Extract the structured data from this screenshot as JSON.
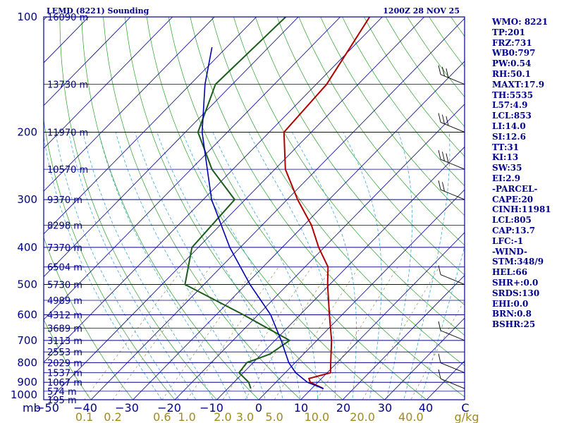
{
  "title": {
    "station": "LEMD (8221) Sounding",
    "time": "1200Z 28 NOV 25"
  },
  "colors": {
    "frame": "#00008b",
    "temperature": "#b00000",
    "dewpoint": "#1a5c1a",
    "parcel": "#0000b0",
    "dry_adiabat": "#2aa02a",
    "moist_adiabat": "#3aaad8",
    "mixing_ratio": "#9a8a5a",
    "mixing_label": "#a08a20"
  },
  "chart_data": {
    "type": "line",
    "subtype": "skew-t log-p sounding",
    "x_unit": "C",
    "x_range": [
      -50,
      50
    ],
    "y_unit": "mb",
    "y_range": [
      100,
      1000
    ],
    "pressure_ticks": [
      100,
      200,
      300,
      400,
      500,
      600,
      700,
      800,
      900,
      1000
    ],
    "y_axis_label": "mb",
    "temperature_ticks": [
      -40,
      -30,
      -20,
      -10,
      0,
      10,
      20,
      30,
      40
    ],
    "temperature_tick_labels": [
      "−50",
      "−40",
      "−30",
      "−20",
      "−10",
      "0",
      "10",
      "20",
      "30",
      "40",
      "C"
    ],
    "height_levels": [
      {
        "p": 100,
        "label": "16090 m"
      },
      {
        "p": 150,
        "label": "13730 m"
      },
      {
        "p": 200,
        "label": "11970 m"
      },
      {
        "p": 250,
        "label": "10570 m"
      },
      {
        "p": 300,
        "label": "9370 m"
      },
      {
        "p": 350,
        "label": "8298 m"
      },
      {
        "p": 400,
        "label": "7370 m"
      },
      {
        "p": 450,
        "label": "6504 m"
      },
      {
        "p": 500,
        "label": "5730 m"
      },
      {
        "p": 550,
        "label": "4989 m"
      },
      {
        "p": 600,
        "label": "4312 m"
      },
      {
        "p": 650,
        "label": "3689 m"
      },
      {
        "p": 700,
        "label": "3113 m"
      },
      {
        "p": 750,
        "label": "2553 m"
      },
      {
        "p": 800,
        "label": "2029 m"
      },
      {
        "p": 850,
        "label": "1537 m"
      },
      {
        "p": 900,
        "label": "1067 m"
      },
      {
        "p": 950,
        "label": "574 m"
      },
      {
        "p": 1000,
        "label": "195 m"
      }
    ],
    "mixing_ratio_labels": [
      "0.1",
      "0.2",
      "0.6",
      "1.0",
      "2.0",
      "3.0",
      "5.0",
      "10.0",
      "20.0",
      "40.0",
      "g/kg"
    ],
    "mixing_ratio_values": [
      0.1,
      0.2,
      0.6,
      1.0,
      2.0,
      3.0,
      5.0,
      10.0,
      20.0,
      40.0
    ],
    "series": [
      {
        "name": "Temperature",
        "points": [
          {
            "p": 100,
            "t": -63.0
          },
          {
            "p": 150,
            "t": -57.5
          },
          {
            "p": 200,
            "t": -56.5
          },
          {
            "p": 250,
            "t": -47.5
          },
          {
            "p": 300,
            "t": -37.5
          },
          {
            "p": 350,
            "t": -28.2
          },
          {
            "p": 400,
            "t": -21.3
          },
          {
            "p": 450,
            "t": -14.5
          },
          {
            "p": 500,
            "t": -10.5
          },
          {
            "p": 600,
            "t": -3.0
          },
          {
            "p": 700,
            "t": 3.5
          },
          {
            "p": 800,
            "t": 8.5
          },
          {
            "p": 850,
            "t": 10.8
          },
          {
            "p": 880,
            "t": 7.0
          },
          {
            "p": 900,
            "t": 8.2
          },
          {
            "p": 935,
            "t": 12.8
          }
        ]
      },
      {
        "name": "Dewpoint",
        "points": [
          {
            "p": 100,
            "t": -83.0
          },
          {
            "p": 150,
            "t": -84.0
          },
          {
            "p": 200,
            "t": -77.0
          },
          {
            "p": 250,
            "t": -65.0
          },
          {
            "p": 300,
            "t": -52.5
          },
          {
            "p": 400,
            "t": -51.5
          },
          {
            "p": 500,
            "t": -44.5
          },
          {
            "p": 600,
            "t": -23.5
          },
          {
            "p": 700,
            "t": -6.5
          },
          {
            "p": 760,
            "t": -8.0
          },
          {
            "p": 800,
            "t": -11.5
          },
          {
            "p": 850,
            "t": -11.0
          },
          {
            "p": 900,
            "t": -6.5
          },
          {
            "p": 935,
            "t": -4.5
          }
        ]
      },
      {
        "name": "Parcel",
        "points": [
          {
            "p": 935,
            "t": 12.8
          },
          {
            "p": 900,
            "t": 7.5
          },
          {
            "p": 850,
            "t": 2.5
          },
          {
            "p": 800,
            "t": -1.5
          },
          {
            "p": 700,
            "t": -8.5
          },
          {
            "p": 600,
            "t": -17.0
          },
          {
            "p": 500,
            "t": -29.0
          },
          {
            "p": 400,
            "t": -42.5
          },
          {
            "p": 300,
            "t": -58.0
          },
          {
            "p": 200,
            "t": -76.0
          },
          {
            "p": 150,
            "t": -86.5
          },
          {
            "p": 120,
            "t": -93.5
          }
        ]
      }
    ],
    "wind_barbs": [
      {
        "p": 150,
        "barbs": 3
      },
      {
        "p": 200,
        "barbs": 3
      },
      {
        "p": 250,
        "barbs": 3
      },
      {
        "p": 300,
        "barbs": 2
      },
      {
        "p": 500,
        "barbs": 1
      },
      {
        "p": 700,
        "barbs": 1
      },
      {
        "p": 850,
        "barbs": 1
      },
      {
        "p": 935,
        "barbs": 1
      }
    ]
  },
  "indices": [
    "WMO: 8221",
    "TP:201",
    "FRZ:731",
    "WB0:797",
    "PW:0.54",
    "RH:50.1",
    "MAXT:17.9",
    "TH:5535",
    "L57:4.9",
    "LCL:853",
    "LI:14.0",
    "SI:12.6",
    "TT:31",
    "KI:13",
    "SW:35",
    "EI:2.9",
    "-PARCEL-",
    "CAPE:20",
    "CINH:11981",
    "LCL:805",
    "CAP:13.7",
    "LFC:-1",
    "-WIND-",
    "STM:348/9",
    "HEL:66",
    "SHR+:0.0",
    "SRDS:130",
    "EHI:0.0",
    "BRN:0.8",
    "BSHR:25"
  ]
}
